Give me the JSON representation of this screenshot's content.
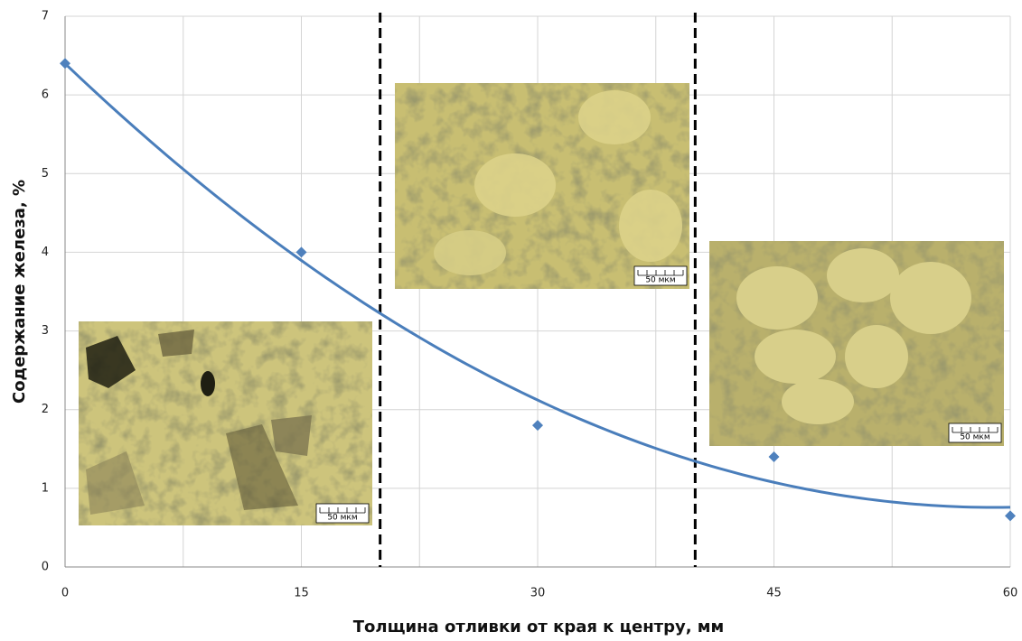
{
  "chart_data": {
    "type": "scatter",
    "x_label": "Толщина отливки от края к центру, мм",
    "y_label": "Содержание железа, %",
    "series": [
      {
        "color": "#4f81bd",
        "x": [
          0,
          15,
          30,
          45,
          60
        ],
        "values": [
          6.4,
          4.0,
          1.8,
          1.4,
          0.65
        ]
      }
    ],
    "trendline": {
      "kind": "polynomial",
      "order": 2,
      "color": "#4a7ebb"
    },
    "xlim": [
      0,
      60
    ],
    "xticks": [
      0,
      15,
      30,
      45,
      60
    ],
    "x_minor_grid": [
      7.5,
      22.5,
      37.5,
      52.5
    ],
    "ylim": [
      0,
      7
    ],
    "yticks": [
      0,
      1,
      2,
      3,
      4,
      5,
      6,
      7
    ],
    "grid": true,
    "vlines": [
      20,
      40
    ],
    "insets": [
      {
        "scale_label": "50 мкм"
      },
      {
        "scale_label": "50 мкм"
      },
      {
        "scale_label": "50 мкм"
      }
    ]
  }
}
